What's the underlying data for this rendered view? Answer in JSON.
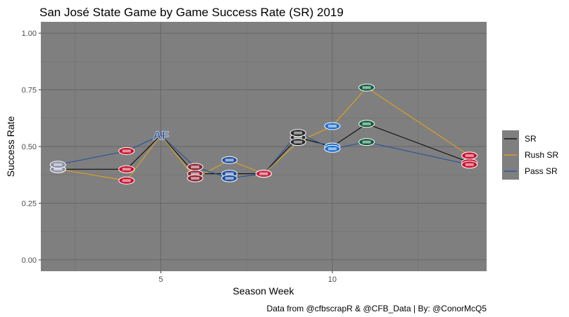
{
  "chart_data": {
    "type": "line",
    "title": "San José State Game by Game Success Rate (SR) 2019",
    "xlabel": "Season Week",
    "ylabel": "Success Rate",
    "caption": "Data from @cfbscrapR & @CFB_Data | By: @ConorMcQ5",
    "xlim": [
      1.5,
      14.5
    ],
    "ylim": [
      -0.05,
      1.05
    ],
    "x_ticks": [
      5,
      10
    ],
    "y_ticks": [
      0.0,
      0.25,
      0.5,
      0.75,
      1.0
    ],
    "y_tick_labels": [
      "0.00",
      "0.25",
      "0.50",
      "0.75",
      "1.00"
    ],
    "grid": true,
    "legend_position": "right",
    "x": [
      2,
      4,
      5,
      6,
      7,
      8,
      9,
      10,
      11,
      14
    ],
    "series": [
      {
        "name": "SR",
        "color": "#000000",
        "values": [
          0.4,
          0.4,
          0.55,
          0.38,
          0.38,
          0.38,
          0.54,
          0.5,
          0.6,
          0.43
        ]
      },
      {
        "name": "Rush SR",
        "color": "#E6A817",
        "values": [
          0.4,
          0.35,
          0.55,
          0.36,
          0.44,
          0.38,
          0.52,
          0.59,
          0.76,
          0.46
        ]
      },
      {
        "name": "Pass SR",
        "color": "#1F4E9E",
        "values": [
          0.42,
          0.48,
          0.55,
          0.41,
          0.36,
          0.38,
          0.56,
          0.49,
          0.52,
          0.42
        ]
      }
    ],
    "markers": [
      {
        "x": 2,
        "icon": "opponent-logo-week2",
        "color": "#8a8fa6"
      },
      {
        "x": 4,
        "icon": "opponent-logo-week4",
        "color": "#c8102e"
      },
      {
        "x": 5,
        "icon": "opponent-logo-week5",
        "color": "#1f4e9e",
        "text": "AF"
      },
      {
        "x": 6,
        "icon": "opponent-logo-week6",
        "color": "#8b2332"
      },
      {
        "x": 7,
        "icon": "opponent-logo-week7",
        "color": "#1f4e9e"
      },
      {
        "x": 8,
        "icon": "opponent-logo-week8",
        "color": "#c41e3a"
      },
      {
        "x": 9,
        "icon": "opponent-logo-week9",
        "color": "#2b2b2b"
      },
      {
        "x": 10,
        "icon": "opponent-logo-week10",
        "color": "#1f6fd1"
      },
      {
        "x": 11,
        "icon": "opponent-logo-week11",
        "color": "#0b5e3c"
      },
      {
        "x": 14,
        "icon": "opponent-logo-week14",
        "color": "#c8102e"
      }
    ]
  }
}
